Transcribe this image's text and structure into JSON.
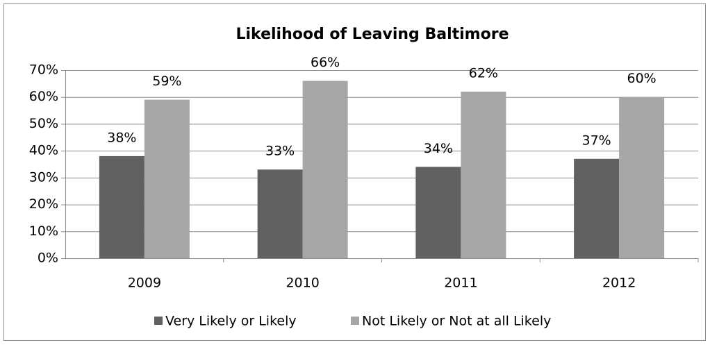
{
  "chart_data": {
    "type": "bar",
    "title": "Likelihood of Leaving Baltimore",
    "categories": [
      "2009",
      "2010",
      "2011",
      "2012"
    ],
    "series": [
      {
        "name": "Very Likely or Likely",
        "color": "#606060",
        "values": [
          38,
          33,
          34,
          37
        ],
        "value_labels": [
          "38%",
          "33%",
          "34%",
          "37%"
        ]
      },
      {
        "name": "Not Likely or Not at all Likely",
        "color": "#a6a6a6",
        "values": [
          59,
          66,
          62,
          60
        ],
        "value_labels": [
          "59%",
          "66%",
          "62%",
          "60%"
        ]
      }
    ],
    "ylim": [
      0,
      70
    ],
    "yticks": [
      {
        "value": 0,
        "label": "0%"
      },
      {
        "value": 10,
        "label": "10%"
      },
      {
        "value": 20,
        "label": "20%"
      },
      {
        "value": 30,
        "label": "30%"
      },
      {
        "value": 40,
        "label": "40%"
      },
      {
        "value": 50,
        "label": "50%"
      },
      {
        "value": 60,
        "label": "60%"
      },
      {
        "value": 70,
        "label": "70%"
      }
    ],
    "grid": true,
    "legend": "bottom"
  }
}
